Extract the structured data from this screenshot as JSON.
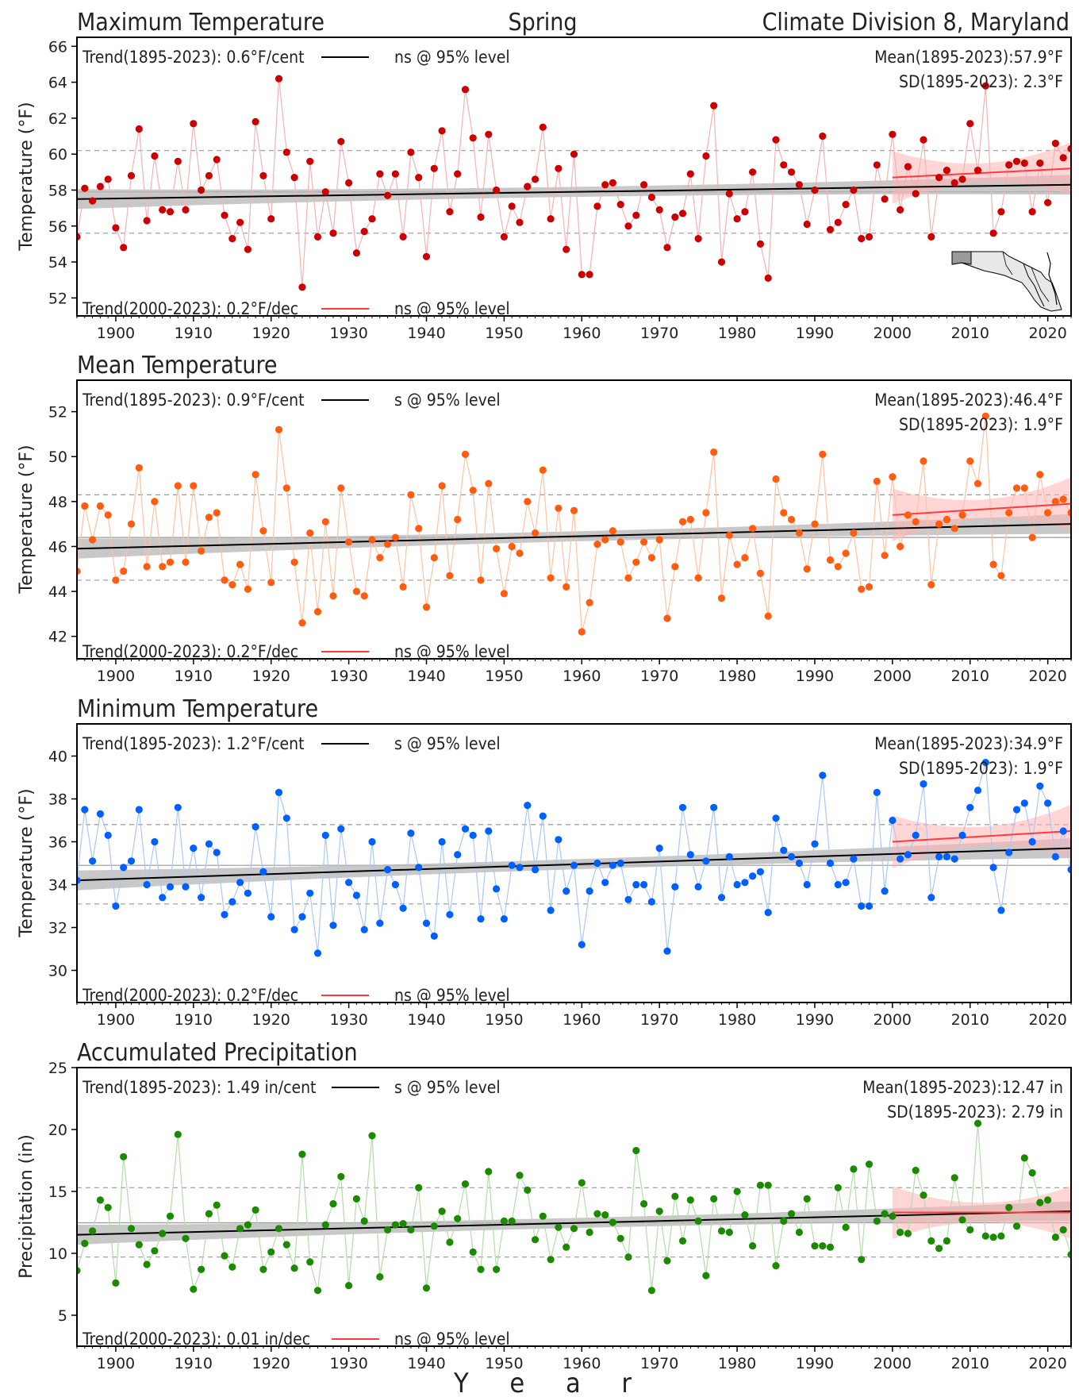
{
  "header": {
    "title_left": "Maximum Temperature",
    "title_center": "Spring",
    "title_right": "Climate Division 8, Maryland"
  },
  "x_axis_label": "Y e a r",
  "chart_data": [
    {
      "type": "scatter",
      "title": "Maximum Temperature",
      "ylabel": "Temperature (°F)",
      "color": "#cc0000",
      "line_color": "#f2b3b3",
      "xlim": [
        1895,
        2023
      ],
      "ylim": [
        51,
        66.5
      ],
      "yticks": [
        52,
        54,
        56,
        58,
        60,
        62,
        64,
        66
      ],
      "xticks": [
        1900,
        1910,
        1920,
        1930,
        1940,
        1950,
        1960,
        1970,
        1980,
        1990,
        2000,
        2010,
        2020
      ],
      "trend_long_text": "Trend(1895-2023):  0.6°F/cent",
      "trend_long_sig": "ns @ 95% level",
      "trend_recent_text": "Trend(2000-2023):  0.2°F/dec",
      "trend_recent_sig": "ns @ 95% level",
      "mean_text": "Mean(1895-2023):57.9°F",
      "sd_text": "SD(1895-2023): 2.3°F",
      "mean": 57.9,
      "sd_lines": [
        55.6,
        60.2
      ],
      "trend_long_line": [
        [
          1895,
          57.5
        ],
        [
          2023,
          58.3
        ]
      ],
      "trend_recent_line": [
        [
          2000,
          58.7
        ],
        [
          2023,
          59.2
        ]
      ],
      "x": [
        1895,
        1896,
        1897,
        1898,
        1899,
        1900,
        1901,
        1902,
        1903,
        1904,
        1905,
        1906,
        1907,
        1908,
        1909,
        1910,
        1911,
        1912,
        1913,
        1914,
        1915,
        1916,
        1917,
        1918,
        1919,
        1920,
        1921,
        1922,
        1923,
        1924,
        1925,
        1926,
        1927,
        1928,
        1929,
        1930,
        1931,
        1932,
        1933,
        1934,
        1935,
        1936,
        1937,
        1938,
        1939,
        1940,
        1941,
        1942,
        1943,
        1944,
        1945,
        1946,
        1947,
        1948,
        1949,
        1950,
        1951,
        1952,
        1953,
        1954,
        1955,
        1956,
        1957,
        1958,
        1959,
        1960,
        1961,
        1962,
        1963,
        1964,
        1965,
        1966,
        1967,
        1968,
        1969,
        1970,
        1971,
        1972,
        1973,
        1974,
        1975,
        1976,
        1977,
        1978,
        1979,
        1980,
        1981,
        1982,
        1983,
        1984,
        1985,
        1986,
        1987,
        1988,
        1989,
        1990,
        1991,
        1992,
        1993,
        1994,
        1995,
        1996,
        1997,
        1998,
        1999,
        2000,
        2001,
        2002,
        2003,
        2004,
        2005,
        2006,
        2007,
        2008,
        2009,
        2010,
        2011,
        2012,
        2013,
        2014,
        2015,
        2016,
        2017,
        2018,
        2019,
        2020,
        2021,
        2022,
        2023
      ],
      "values": [
        55.4,
        58.1,
        57.4,
        58.2,
        58.6,
        55.9,
        54.8,
        58.8,
        61.4,
        56.3,
        59.9,
        56.9,
        56.8,
        59.6,
        56.9,
        61.7,
        58.0,
        58.8,
        59.7,
        56.6,
        55.3,
        56.2,
        54.7,
        61.8,
        58.8,
        56.4,
        64.2,
        60.1,
        58.7,
        52.6,
        59.6,
        55.4,
        57.9,
        55.6,
        60.7,
        58.4,
        54.5,
        55.7,
        56.4,
        58.9,
        57.7,
        58.9,
        55.4,
        60.1,
        58.7,
        54.3,
        59.2,
        61.3,
        56.8,
        58.9,
        63.6,
        60.9,
        56.5,
        61.1,
        58.0,
        55.4,
        57.1,
        56.2,
        58.2,
        58.6,
        61.5,
        56.4,
        59.2,
        54.7,
        60.0,
        53.3,
        53.3,
        57.1,
        58.3,
        58.4,
        57.2,
        56.0,
        56.6,
        58.3,
        57.6,
        56.9,
        54.8,
        56.5,
        56.7,
        58.9,
        55.3,
        59.9,
        62.7,
        54.0,
        57.8,
        56.4,
        56.8,
        59.0,
        55.0,
        53.1,
        60.8,
        59.4,
        59.0,
        58.3,
        56.1,
        58.0,
        61.0,
        55.8,
        56.2,
        57.2,
        58.0,
        55.3,
        55.4,
        59.4,
        57.5,
        61.1,
        56.9,
        59.3,
        57.8,
        60.8,
        55.4,
        58.7,
        59.1,
        58.4,
        58.6,
        61.7,
        59.1,
        63.8,
        55.6,
        56.8,
        59.4,
        59.6,
        59.5,
        56.8,
        59.5,
        57.3,
        60.6,
        59.8,
        60.3
      ]
    },
    {
      "type": "scatter",
      "title": "Mean Temperature",
      "ylabel": "Temperature (°F)",
      "color": "#ff5c10",
      "line_color": "#ffc2a3",
      "xlim": [
        1895,
        2023
      ],
      "ylim": [
        41.0,
        53.4
      ],
      "yticks": [
        42,
        44,
        46,
        48,
        50,
        52
      ],
      "xticks": [
        1900,
        1910,
        1920,
        1930,
        1940,
        1950,
        1960,
        1970,
        1980,
        1990,
        2000,
        2010,
        2020
      ],
      "trend_long_text": "Trend(1895-2023):  0.9°F/cent",
      "trend_long_sig": "s @ 95% level",
      "trend_recent_text": "Trend(2000-2023):  0.2°F/dec",
      "trend_recent_sig": "ns @ 95% level",
      "mean_text": "Mean(1895-2023):46.4°F",
      "sd_text": "SD(1895-2023): 1.9°F",
      "mean": 46.4,
      "sd_lines": [
        44.5,
        48.3
      ],
      "trend_long_line": [
        [
          1895,
          45.9
        ],
        [
          2023,
          47.0
        ]
      ],
      "trend_recent_line": [
        [
          2000,
          47.4
        ],
        [
          2023,
          47.9
        ]
      ],
      "x": [
        1895,
        1896,
        1897,
        1898,
        1899,
        1900,
        1901,
        1902,
        1903,
        1904,
        1905,
        1906,
        1907,
        1908,
        1909,
        1910,
        1911,
        1912,
        1913,
        1914,
        1915,
        1916,
        1917,
        1918,
        1919,
        1920,
        1921,
        1922,
        1923,
        1924,
        1925,
        1926,
        1927,
        1928,
        1929,
        1930,
        1931,
        1932,
        1933,
        1934,
        1935,
        1936,
        1937,
        1938,
        1939,
        1940,
        1941,
        1942,
        1943,
        1944,
        1945,
        1946,
        1947,
        1948,
        1949,
        1950,
        1951,
        1952,
        1953,
        1954,
        1955,
        1956,
        1957,
        1958,
        1959,
        1960,
        1961,
        1962,
        1963,
        1964,
        1965,
        1966,
        1967,
        1968,
        1969,
        1970,
        1971,
        1972,
        1973,
        1974,
        1975,
        1976,
        1977,
        1978,
        1979,
        1980,
        1981,
        1982,
        1983,
        1984,
        1985,
        1986,
        1987,
        1988,
        1989,
        1990,
        1991,
        1992,
        1993,
        1994,
        1995,
        1996,
        1997,
        1998,
        1999,
        2000,
        2001,
        2002,
        2003,
        2004,
        2005,
        2006,
        2007,
        2008,
        2009,
        2010,
        2011,
        2012,
        2013,
        2014,
        2015,
        2016,
        2017,
        2018,
        2019,
        2020,
        2021,
        2022,
        2023
      ],
      "values": [
        44.9,
        47.8,
        46.3,
        47.8,
        47.4,
        44.5,
        44.9,
        47.0,
        49.5,
        45.1,
        48.0,
        45.1,
        45.3,
        48.7,
        45.3,
        48.7,
        45.8,
        47.3,
        47.5,
        44.5,
        44.3,
        45.2,
        44.1,
        49.2,
        46.7,
        44.4,
        51.2,
        48.6,
        45.3,
        42.6,
        46.6,
        43.1,
        47.1,
        43.8,
        48.6,
        46.2,
        44.0,
        43.8,
        46.3,
        45.5,
        46.1,
        46.4,
        44.2,
        48.3,
        46.8,
        43.3,
        45.5,
        48.7,
        44.7,
        47.2,
        50.1,
        48.5,
        44.5,
        48.8,
        45.9,
        43.9,
        46.0,
        45.7,
        48.0,
        46.6,
        49.4,
        44.6,
        47.7,
        44.2,
        47.6,
        42.2,
        43.5,
        46.1,
        46.3,
        46.7,
        46.2,
        44.6,
        45.3,
        46.2,
        45.5,
        46.3,
        42.8,
        45.1,
        47.1,
        47.2,
        44.6,
        47.5,
        50.2,
        43.7,
        46.5,
        45.2,
        45.5,
        46.8,
        44.8,
        42.9,
        49.0,
        47.5,
        47.2,
        46.6,
        45.0,
        47.0,
        50.1,
        45.4,
        45.1,
        45.7,
        46.6,
        44.1,
        44.2,
        48.9,
        45.6,
        49.1,
        46.0,
        47.4,
        47.1,
        49.8,
        44.3,
        47.0,
        47.2,
        46.8,
        47.4,
        49.8,
        48.8,
        51.8,
        45.2,
        44.7,
        47.5,
        48.6,
        48.6,
        46.4,
        49.2,
        47.5,
        48.0,
        48.1,
        47.5
      ]
    },
    {
      "type": "scatter",
      "title": "Minimum Temperature",
      "ylabel": "Temperature (°F)",
      "color": "#0060ff",
      "line_color": "#a9c8f7",
      "xlim": [
        1895,
        2023
      ],
      "ylim": [
        28.5,
        41.5
      ],
      "yticks": [
        30,
        32,
        34,
        36,
        38,
        40
      ],
      "xticks": [
        1900,
        1910,
        1920,
        1930,
        1940,
        1950,
        1960,
        1970,
        1980,
        1990,
        2000,
        2010,
        2020
      ],
      "trend_long_text": "Trend(1895-2023):  1.2°F/cent",
      "trend_long_sig": "s @ 95% level",
      "trend_recent_text": "Trend(2000-2023):  0.2°F/dec",
      "trend_recent_sig": "ns @ 95% level",
      "mean_text": "Mean(1895-2023):34.9°F",
      "sd_text": "SD(1895-2023): 1.9°F",
      "mean": 34.9,
      "sd_lines": [
        33.1,
        36.8
      ],
      "trend_long_line": [
        [
          1895,
          34.2
        ],
        [
          2023,
          35.7
        ]
      ],
      "trend_recent_line": [
        [
          2000,
          36.0
        ],
        [
          2023,
          36.5
        ]
      ],
      "x": [
        1895,
        1896,
        1897,
        1898,
        1899,
        1900,
        1901,
        1902,
        1903,
        1904,
        1905,
        1906,
        1907,
        1908,
        1909,
        1910,
        1911,
        1912,
        1913,
        1914,
        1915,
        1916,
        1917,
        1918,
        1919,
        1920,
        1921,
        1922,
        1923,
        1924,
        1925,
        1926,
        1927,
        1928,
        1929,
        1930,
        1931,
        1932,
        1933,
        1934,
        1935,
        1936,
        1937,
        1938,
        1939,
        1940,
        1941,
        1942,
        1943,
        1944,
        1945,
        1946,
        1947,
        1948,
        1949,
        1950,
        1951,
        1952,
        1953,
        1954,
        1955,
        1956,
        1957,
        1958,
        1959,
        1960,
        1961,
        1962,
        1963,
        1964,
        1965,
        1966,
        1967,
        1968,
        1969,
        1970,
        1971,
        1972,
        1973,
        1974,
        1975,
        1976,
        1977,
        1978,
        1979,
        1980,
        1981,
        1982,
        1983,
        1984,
        1985,
        1986,
        1987,
        1988,
        1989,
        1990,
        1991,
        1992,
        1993,
        1994,
        1995,
        1996,
        1997,
        1998,
        1999,
        2000,
        2001,
        2002,
        2003,
        2004,
        2005,
        2006,
        2007,
        2008,
        2009,
        2010,
        2011,
        2012,
        2013,
        2014,
        2015,
        2016,
        2017,
        2018,
        2019,
        2020,
        2021,
        2022,
        2023
      ],
      "values": [
        34.2,
        37.5,
        35.1,
        37.3,
        36.3,
        33.0,
        34.8,
        35.1,
        37.5,
        34.0,
        36.0,
        33.4,
        33.9,
        37.6,
        33.9,
        35.7,
        33.4,
        35.9,
        35.5,
        32.6,
        33.2,
        34.1,
        33.6,
        36.7,
        34.6,
        32.5,
        38.3,
        37.1,
        31.9,
        32.5,
        33.6,
        30.8,
        36.3,
        32.1,
        36.6,
        34.1,
        33.5,
        31.9,
        36.0,
        32.2,
        34.7,
        34.0,
        32.9,
        36.4,
        34.8,
        32.2,
        31.6,
        36.0,
        32.6,
        35.4,
        36.6,
        36.3,
        32.4,
        36.5,
        33.8,
        32.4,
        34.9,
        34.8,
        37.7,
        34.7,
        37.2,
        32.8,
        36.1,
        33.7,
        34.9,
        31.2,
        33.7,
        35.0,
        34.1,
        34.9,
        35.0,
        33.3,
        34.0,
        34.0,
        33.2,
        35.7,
        30.9,
        33.9,
        37.6,
        35.4,
        33.9,
        35.1,
        37.6,
        33.4,
        35.3,
        34.0,
        34.1,
        34.4,
        34.6,
        32.7,
        37.1,
        35.6,
        35.3,
        35.0,
        34.0,
        35.9,
        39.1,
        35.0,
        34.0,
        34.1,
        35.2,
        33.0,
        33.0,
        38.3,
        33.7,
        37.0,
        35.2,
        35.4,
        36.3,
        38.7,
        33.4,
        35.3,
        35.3,
        35.2,
        36.3,
        37.6,
        38.4,
        39.7,
        34.8,
        32.8,
        35.5,
        37.5,
        37.8,
        36.0,
        38.6,
        37.8,
        35.3,
        36.5,
        34.7
      ]
    },
    {
      "type": "scatter",
      "title": "Accumulated Precipitation",
      "ylabel": "Precipitation (in)",
      "color": "#1b8a00",
      "line_color": "#b4dcab",
      "xlim": [
        1895,
        2023
      ],
      "ylim": [
        2.5,
        25.0
      ],
      "yticks": [
        5,
        10,
        15,
        20,
        25
      ],
      "xticks": [
        1900,
        1910,
        1920,
        1930,
        1940,
        1950,
        1960,
        1970,
        1980,
        1990,
        2000,
        2010,
        2020
      ],
      "trend_long_text": "Trend(1895-2023):  1.49 in/cent",
      "trend_long_sig": "s @ 95% level",
      "trend_recent_text": "Trend(2000-2023):  0.01 in/dec",
      "trend_recent_sig": "ns @ 95% level",
      "mean_text": "Mean(1895-2023):12.47 in",
      "sd_text": "SD(1895-2023): 2.79 in",
      "mean": 12.47,
      "sd_lines": [
        9.7,
        15.3
      ],
      "trend_long_line": [
        [
          1895,
          11.5
        ],
        [
          2023,
          13.4
        ]
      ],
      "trend_recent_line": [
        [
          2000,
          13.3
        ],
        [
          2023,
          13.3
        ]
      ],
      "x": [
        1895,
        1896,
        1897,
        1898,
        1899,
        1900,
        1901,
        1902,
        1903,
        1904,
        1905,
        1906,
        1907,
        1908,
        1909,
        1910,
        1911,
        1912,
        1913,
        1914,
        1915,
        1916,
        1917,
        1918,
        1919,
        1920,
        1921,
        1922,
        1923,
        1924,
        1925,
        1926,
        1927,
        1928,
        1929,
        1930,
        1931,
        1932,
        1933,
        1934,
        1935,
        1936,
        1937,
        1938,
        1939,
        1940,
        1941,
        1942,
        1943,
        1944,
        1945,
        1946,
        1947,
        1948,
        1949,
        1950,
        1951,
        1952,
        1953,
        1954,
        1955,
        1956,
        1957,
        1958,
        1959,
        1960,
        1961,
        1962,
        1963,
        1964,
        1965,
        1966,
        1967,
        1968,
        1969,
        1970,
        1971,
        1972,
        1973,
        1974,
        1975,
        1976,
        1977,
        1978,
        1979,
        1980,
        1981,
        1982,
        1983,
        1984,
        1985,
        1986,
        1987,
        1988,
        1989,
        1990,
        1991,
        1992,
        1993,
        1994,
        1995,
        1996,
        1997,
        1998,
        1999,
        2000,
        2001,
        2002,
        2003,
        2004,
        2005,
        2006,
        2007,
        2008,
        2009,
        2010,
        2011,
        2012,
        2013,
        2014,
        2015,
        2016,
        2017,
        2018,
        2019,
        2020,
        2021,
        2022,
        2023
      ],
      "values": [
        8.6,
        10.8,
        11.8,
        14.3,
        13.7,
        7.6,
        17.8,
        12.0,
        10.7,
        9.1,
        10.2,
        11.6,
        13.0,
        19.6,
        11.2,
        7.1,
        8.7,
        13.2,
        13.9,
        9.8,
        8.9,
        12.0,
        12.3,
        13.5,
        8.7,
        10.1,
        12.0,
        10.7,
        8.8,
        18.0,
        9.3,
        7.0,
        12.3,
        14.0,
        16.2,
        7.4,
        14.4,
        12.6,
        19.5,
        8.1,
        11.9,
        12.3,
        12.4,
        11.9,
        15.3,
        7.2,
        12.2,
        13.4,
        10.9,
        12.8,
        15.6,
        10.1,
        8.7,
        16.6,
        8.7,
        12.6,
        12.6,
        16.3,
        15.1,
        11.1,
        13.0,
        9.5,
        12.1,
        10.5,
        12.0,
        15.7,
        11.7,
        13.2,
        13.1,
        12.5,
        11.2,
        9.7,
        18.3,
        14.0,
        7.0,
        13.4,
        9.4,
        14.6,
        11.0,
        14.3,
        12.6,
        8.2,
        14.4,
        11.8,
        11.7,
        15.0,
        13.1,
        10.6,
        15.5,
        15.5,
        9.0,
        12.6,
        13.2,
        11.7,
        14.4,
        10.6,
        10.6,
        10.5,
        15.3,
        12.1,
        16.8,
        9.5,
        17.2,
        12.6,
        13.2,
        13.0,
        11.7,
        11.6,
        16.7,
        14.7,
        11.0,
        10.4,
        11.0,
        16.1,
        12.7,
        11.9,
        20.5,
        11.4,
        11.3,
        11.4,
        13.7,
        12.2,
        17.7,
        16.5,
        14.1,
        14.3,
        11.3,
        11.9,
        9.9
      ]
    }
  ]
}
